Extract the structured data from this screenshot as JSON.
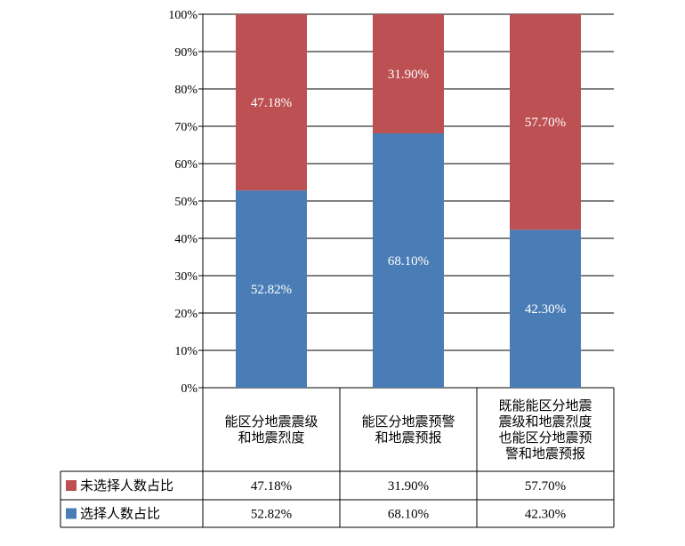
{
  "chart_data": {
    "type": "bar",
    "stacked": true,
    "percent": true,
    "categories": [
      [
        "能区分地震震级",
        "和地震烈度"
      ],
      [
        "能区分地震预警",
        "和地震预报"
      ],
      [
        "既能能区分地震",
        "震级和地震烈度",
        "也能区分地震预",
        "警和地震预报"
      ]
    ],
    "series": [
      {
        "name": "选择人数占比",
        "values": [
          52.82,
          68.1,
          42.3
        ],
        "labels": [
          "52.82%",
          "68.10%",
          "42.30%"
        ],
        "color": "#4a7db5"
      },
      {
        "name": "未选择人数占比",
        "values": [
          47.18,
          31.9,
          57.7
        ],
        "labels": [
          "47.18%",
          "31.90%",
          "57.70%"
        ],
        "color": "#bd5052"
      }
    ],
    "yticks": [
      "0%",
      "10%",
      "20%",
      "30%",
      "40%",
      "50%",
      "60%",
      "70%",
      "80%",
      "90%",
      "100%"
    ],
    "ylim": [
      0,
      100
    ],
    "grid": true,
    "legend": "data-table-left"
  }
}
